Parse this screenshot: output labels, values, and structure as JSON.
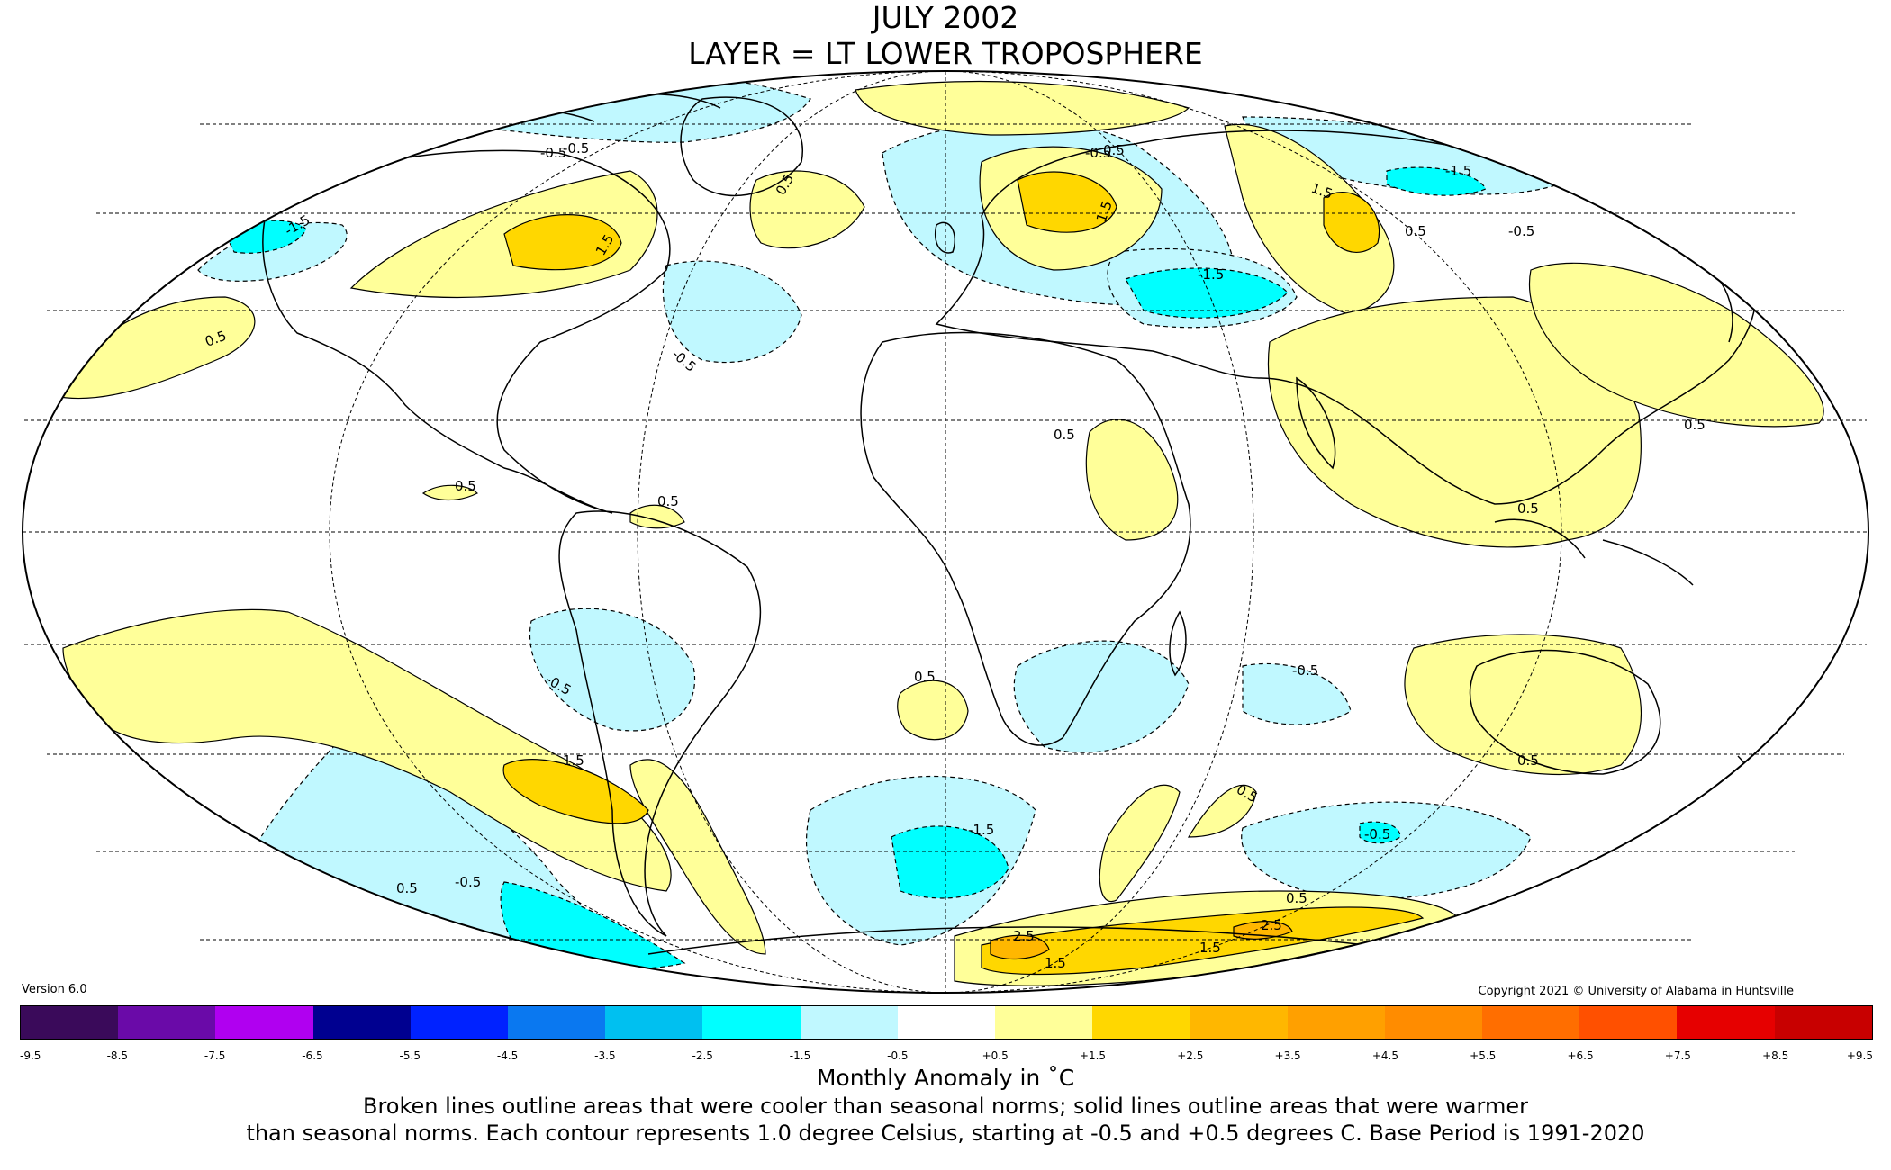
{
  "title": {
    "line1": "JULY 2002",
    "line2": "LAYER = LT LOWER TROPOSPHERE"
  },
  "version": "Version 6.0",
  "copyright": "Copyright 2021 © University of Alabama in Huntsville",
  "colorbar": {
    "ticks": [
      "-9.5",
      "-8.5",
      "-7.5",
      "-6.5",
      "-5.5",
      "-4.5",
      "-3.5",
      "-2.5",
      "-1.5",
      "-0.5",
      "+0.5",
      "+1.5",
      "+2.5",
      "+3.5",
      "+4.5",
      "+5.5",
      "+6.5",
      "+7.5",
      "+8.5",
      "+9.5"
    ],
    "colors": [
      "#3a0a5a",
      "#6a0aa8",
      "#b000f0",
      "#000090",
      "#0022ff",
      "#0a78f0",
      "#00c0f0",
      "#00ffff",
      "#c0f8ff",
      "#ffffff",
      "#ffff99",
      "#ffd700",
      "#ffb700",
      "#ffa000",
      "#ff8c00",
      "#ff6e00",
      "#ff5000",
      "#e60000",
      "#c80000"
    ]
  },
  "legend_title": "Monthly Anomaly in ˚C",
  "caption": {
    "line1": "Broken lines outline areas that were cooler than seasonal norms; solid lines outline areas that were warmer",
    "line2": "than seasonal norms. Each contour represents 1.0 degree Celsius, starting at -0.5 and +0.5 degrees C. Base Period is 1991-2020"
  },
  "map": {
    "projection": "Mollweide",
    "contour_labels": [
      "-0.5",
      "0.5",
      "1.5",
      "-1.5",
      "-0.5",
      "0.5",
      "-0.5",
      "1.5",
      "0.5",
      "0.5",
      "-0.5",
      "-1.5",
      "1.5",
      "0.5",
      "-0.5",
      "-1.5",
      "0.5",
      "-0.5",
      "0.5",
      "-0.5",
      "1.5",
      "-1.5",
      "0.5",
      "0.5",
      "-0.5",
      "2.5",
      "2.5",
      "1.5",
      "1.5",
      "0.5",
      "0.5",
      "-0.5",
      "0.5",
      "0.5",
      "0.5"
    ]
  }
}
